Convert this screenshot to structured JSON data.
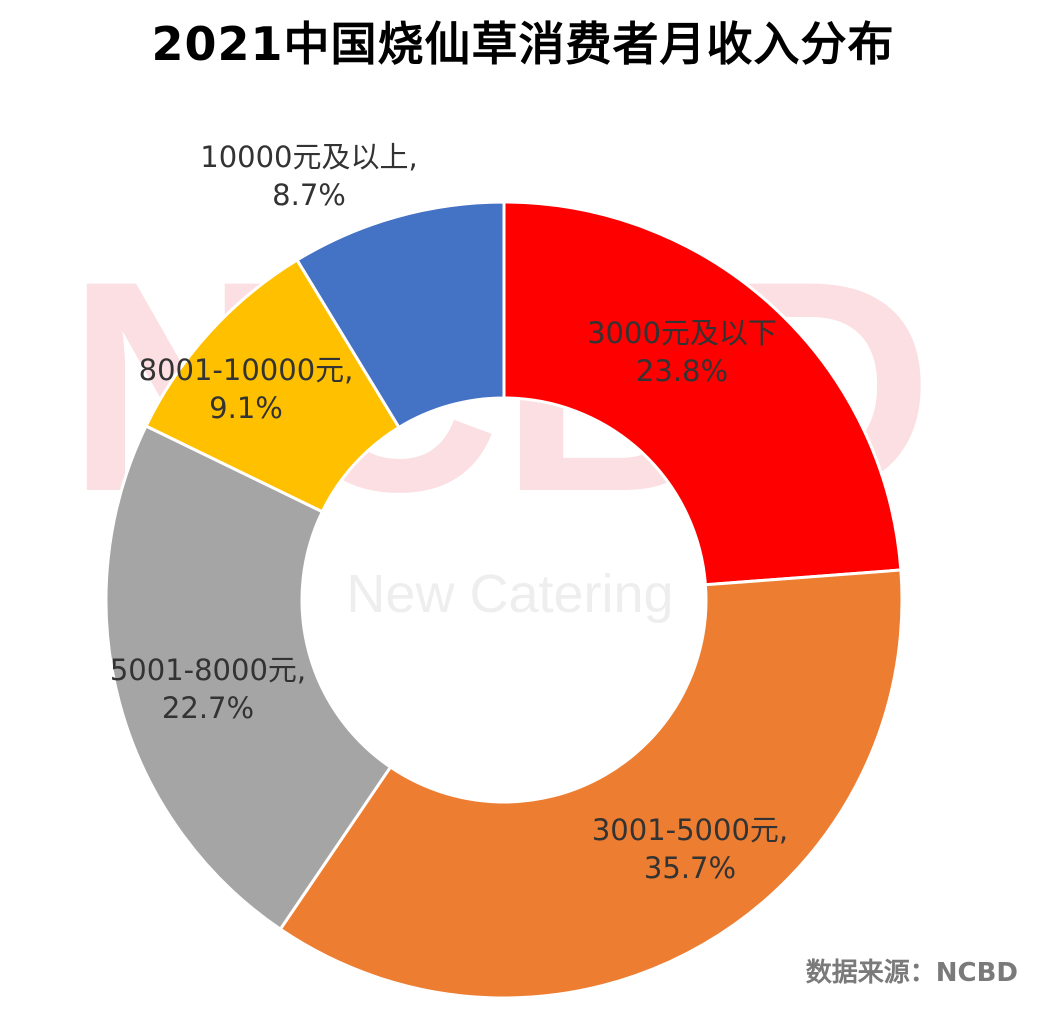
{
  "title": "2021中国烧仙草消费者月收入分布",
  "source": "数据来源：NCBD",
  "watermark": {
    "logo": "NCBD",
    "text": "New Catering"
  },
  "chart_data": {
    "type": "pie",
    "donut": true,
    "title": "2021中国烧仙草消费者月收入分布",
    "slices": [
      {
        "label": "3000元及以下",
        "value": 23.8,
        "value_text": "23.8%",
        "color": "#ff0000"
      },
      {
        "label": "3001-5000元,",
        "value": 35.7,
        "value_text": "35.7%",
        "color": "#ed7d31"
      },
      {
        "label": "5001-8000元,",
        "value": 22.7,
        "value_text": "22.7%",
        "color": "#a5a5a5"
      },
      {
        "label": "8001-10000元,",
        "value": 9.1,
        "value_text": "9.1%",
        "color": "#ffc000"
      },
      {
        "label": "10000元及以上,",
        "value": 8.7,
        "value_text": "8.7%",
        "color": "#4472c4"
      }
    ],
    "start_angle_deg": 0,
    "direction": "clockwise",
    "legend": "none"
  }
}
